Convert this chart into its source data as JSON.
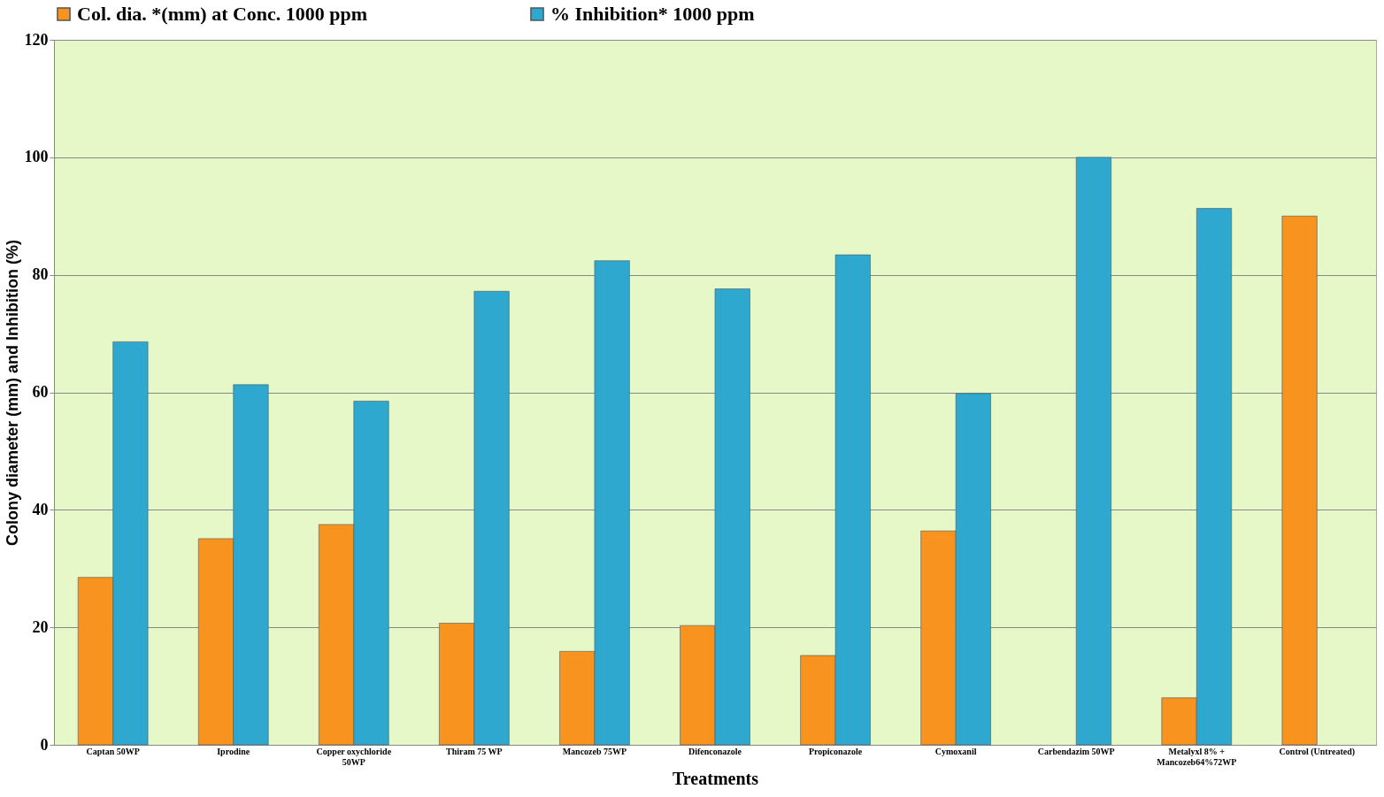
{
  "chart_data": {
    "type": "bar",
    "xlabel": "Treatments",
    "ylabel": "Colony diameter (mm) and Inhibition (%)",
    "categories": [
      "Captan 50WP",
      "Iprodine",
      "Copper oxychloride\n50WP",
      "Thiram  75 WP",
      "Mancozeb 75WP",
      "Difenconazole",
      "Propiconazole",
      "Cymoxanil",
      "Carbendazim  50WP",
      "Metalyxl 8% +\nMancozeb64%72WP",
      "Control (Untreated)"
    ],
    "series": [
      {
        "name": "Col. dia. *(mm) at Conc. 1000 ppm",
        "color": "#f7931e",
        "values": [
          28.5,
          35.1,
          37.5,
          20.7,
          15.9,
          20.3,
          15.2,
          36.4,
          null,
          8.0,
          90
        ]
      },
      {
        "name": "% Inhibition* 1000 ppm",
        "color": "#2fa8cf",
        "values": [
          68.6,
          61.3,
          58.5,
          77.2,
          82.4,
          77.6,
          83.4,
          59.8,
          100,
          91.3,
          null
        ]
      }
    ],
    "ylim": [
      0,
      120
    ],
    "yticks": [
      0,
      20,
      40,
      60,
      80,
      100,
      120
    ],
    "grid": "y",
    "legend": "top"
  }
}
